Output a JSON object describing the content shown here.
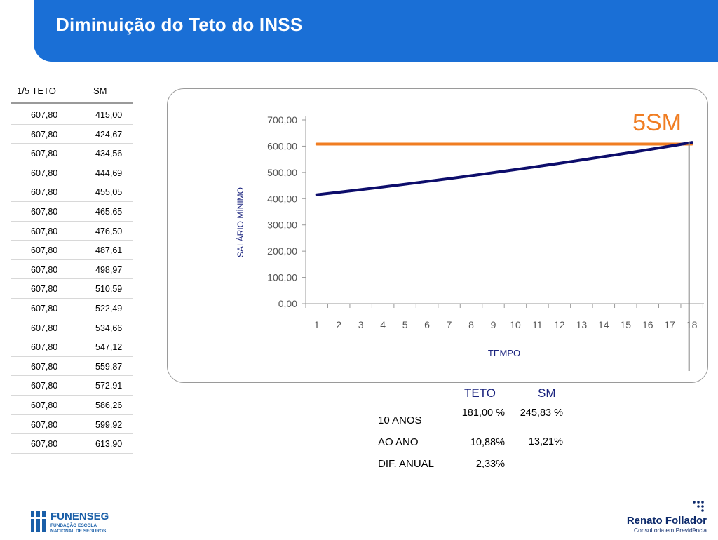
{
  "header": {
    "title": "Diminuição do Teto do INSS"
  },
  "table": {
    "col1": "1/5 TETO",
    "col2": "SM",
    "rows": [
      [
        "607,80",
        "415,00"
      ],
      [
        "607,80",
        "424,67"
      ],
      [
        "607,80",
        "434,56"
      ],
      [
        "607,80",
        "444,69"
      ],
      [
        "607,80",
        "455,05"
      ],
      [
        "607,80",
        "465,65"
      ],
      [
        "607,80",
        "476,50"
      ],
      [
        "607,80",
        "487,61"
      ],
      [
        "607,80",
        "498,97"
      ],
      [
        "607,80",
        "510,59"
      ],
      [
        "607,80",
        "522,49"
      ],
      [
        "607,80",
        "534,66"
      ],
      [
        "607,80",
        "547,12"
      ],
      [
        "607,80",
        "559,87"
      ],
      [
        "607,80",
        "572,91"
      ],
      [
        "607,80",
        "586,26"
      ],
      [
        "607,80",
        "599,92"
      ],
      [
        "607,80",
        "613,90"
      ]
    ]
  },
  "chart_data": {
    "type": "line",
    "title": "",
    "xlabel": "TEMPO",
    "ylabel": "SALÁRIO MÍNIMO",
    "annotation": "5SM",
    "x": [
      1,
      2,
      3,
      4,
      5,
      6,
      7,
      8,
      9,
      10,
      11,
      12,
      13,
      14,
      15,
      16,
      17,
      18
    ],
    "ylim": [
      0,
      700
    ],
    "yticks": [
      "0,00",
      "100,00",
      "200,00",
      "300,00",
      "400,00",
      "500,00",
      "600,00",
      "700,00"
    ],
    "grid": false,
    "series": [
      {
        "color": "#f07d22",
        "values": [
          607.8,
          607.8,
          607.8,
          607.8,
          607.8,
          607.8,
          607.8,
          607.8,
          607.8,
          607.8,
          607.8,
          607.8,
          607.8,
          607.8,
          607.8,
          607.8,
          607.8,
          607.8
        ]
      },
      {
        "color": "#0d0d6b",
        "values": [
          415.0,
          424.67,
          434.56,
          444.69,
          455.05,
          465.65,
          476.5,
          487.61,
          498.97,
          510.59,
          522.49,
          534.66,
          547.12,
          559.87,
          572.91,
          586.26,
          599.92,
          613.9
        ]
      }
    ]
  },
  "summary": {
    "head_teto": "TETO",
    "head_sm": "SM",
    "rows": [
      {
        "label": "10 ANOS",
        "teto": "181,00 %",
        "sm": "245,83 %"
      },
      {
        "label": "AO ANO",
        "teto": "10,88%",
        "sm": "13,21%"
      },
      {
        "label": "DIF. ANUAL",
        "teto": "2,33%",
        "sm": ""
      }
    ]
  },
  "logos": {
    "left_name": "FUNENSEG",
    "left_sub1": "FUNDAÇÃO ESCOLA",
    "left_sub2": "NACIONAL DE SEGUROS",
    "right_name": "Renato Follador",
    "right_sub": "Consultoria  em  Previdência"
  },
  "colors": {
    "header": "#1a6fd6",
    "orange": "#f07d22",
    "navy": "#0d0d6b"
  }
}
